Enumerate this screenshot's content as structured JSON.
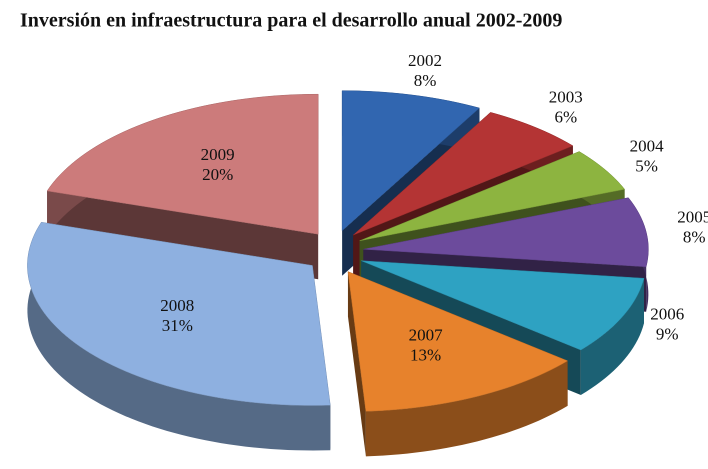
{
  "chart_data": {
    "type": "pie3d",
    "title": "Inversión en infraestructura para el desarrollo anual 2002-2009",
    "categories": [
      "2002",
      "2003",
      "2004",
      "2005",
      "2006",
      "2007",
      "2008",
      "2009"
    ],
    "values": [
      8,
      6,
      5,
      8,
      9,
      13,
      31,
      20
    ],
    "value_labels": [
      "8%",
      "6%",
      "5%",
      "8%",
      "9%",
      "13%",
      "31%",
      "20%"
    ],
    "colors": [
      "#3166b0",
      "#b43434",
      "#8db440",
      "#6c4b9c",
      "#2ea2c2",
      "#e7822c",
      "#8eb0e0",
      "#cc7b7b"
    ],
    "exploded": true
  }
}
